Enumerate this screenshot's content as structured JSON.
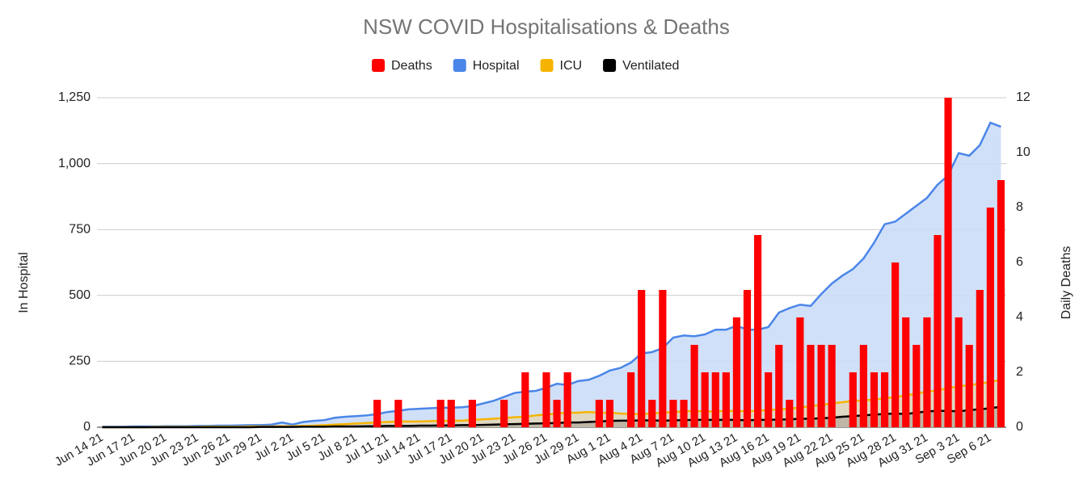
{
  "chart_data": {
    "type": "combo",
    "title": "NSW COVID Hospitalisations & Deaths",
    "y_label": "In Hospital",
    "y2_label": "Daily Deaths",
    "legend": "top",
    "grid": true,
    "categories": [
      "Jun 14 21",
      null,
      null,
      "Jun 17 21",
      null,
      null,
      "Jun 20 21",
      null,
      null,
      "Jun 23 21",
      null,
      null,
      "Jun 26 21",
      null,
      null,
      "Jun 29 21",
      null,
      null,
      "Jul 2 21",
      null,
      null,
      "Jul 5 21",
      null,
      null,
      "Jul 8 21",
      null,
      null,
      "Jul 11 21",
      null,
      null,
      "Jul 14 21",
      null,
      null,
      "Jul 17 21",
      null,
      null,
      "Jul 20 21",
      null,
      null,
      "Jul 23 21",
      null,
      null,
      "Jul 26 21",
      null,
      null,
      "Jul 29 21",
      null,
      null,
      "Aug 1 21",
      null,
      null,
      "Aug 4 21",
      null,
      null,
      "Aug 7 21",
      null,
      null,
      "Aug 10 21",
      null,
      null,
      "Aug 13 21",
      null,
      null,
      "Aug 16 21",
      null,
      null,
      "Aug 19 21",
      null,
      null,
      "Aug 22 21",
      null,
      null,
      "Aug 25 21",
      null,
      null,
      "Aug 28 21",
      null,
      null,
      "Aug 31 21",
      null,
      null,
      "Sep 3 21",
      null,
      null,
      "Sep 6 21",
      null
    ],
    "ylim": [
      0,
      1250
    ],
    "yticks": [
      0,
      250,
      500,
      750,
      {
        "value": 1000,
        "label": "1,000"
      },
      {
        "value": 1250,
        "label": "1,250"
      }
    ],
    "y2lim": [
      0,
      12
    ],
    "y2ticks": [
      0,
      2,
      4,
      6,
      8,
      10,
      12
    ],
    "series": [
      {
        "name": "Deaths",
        "type": "bar",
        "axis": "y2",
        "color": "#ff0000",
        "values": [
          0,
          0,
          0,
          0,
          0,
          0,
          0,
          0,
          0,
          0,
          0,
          0,
          0,
          0,
          0,
          0,
          0,
          0,
          0,
          0,
          0,
          0,
          0,
          0,
          0,
          0,
          1,
          0,
          1,
          0,
          0,
          0,
          1,
          1,
          0,
          1,
          0,
          0,
          1,
          0,
          2,
          0,
          2,
          1,
          2,
          0,
          0,
          1,
          1,
          0,
          2,
          5,
          1,
          5,
          1,
          1,
          3,
          2,
          2,
          2,
          4,
          5,
          7,
          2,
          3,
          1,
          4,
          3,
          3,
          3,
          0,
          2,
          3,
          2,
          2,
          6,
          4,
          3,
          4,
          7,
          12,
          4,
          3,
          5,
          8,
          9
        ]
      },
      {
        "name": "Hospital",
        "type": "area",
        "color": "#4a86e8",
        "fill": "#c9dbf8",
        "values": [
          2,
          2,
          2,
          3,
          3,
          3,
          4,
          4,
          4,
          5,
          5,
          6,
          6,
          7,
          8,
          8,
          10,
          18,
          10,
          20,
          24,
          27,
          36,
          40,
          42,
          45,
          50,
          58,
          62,
          68,
          70,
          72,
          74,
          74,
          76,
          80,
          90,
          100,
          115,
          130,
          135,
          138,
          150,
          165,
          160,
          175,
          180,
          195,
          215,
          225,
          245,
          280,
          285,
          300,
          340,
          348,
          345,
          352,
          370,
          370,
          385,
          370,
          370,
          380,
          435,
          452,
          465,
          460,
          505,
          545,
          575,
          600,
          640,
          700,
          770,
          780,
          810,
          840,
          870,
          920,
          955,
          1040,
          1030,
          1070,
          1155,
          1140
        ]
      },
      {
        "name": "ICU",
        "type": "area",
        "color": "#f6b400",
        "fill": "#e3d6b8",
        "values": [
          0,
          0,
          0,
          0,
          0,
          1,
          1,
          1,
          1,
          1,
          2,
          2,
          2,
          2,
          3,
          3,
          3,
          4,
          4,
          5,
          6,
          8,
          10,
          12,
          14,
          16,
          18,
          20,
          22,
          22,
          22,
          23,
          24,
          25,
          25,
          28,
          30,
          32,
          35,
          38,
          40,
          45,
          48,
          52,
          55,
          55,
          58,
          55,
          55,
          52,
          50,
          50,
          52,
          55,
          58,
          60,
          62,
          60,
          60,
          62,
          62,
          60,
          63,
          65,
          68,
          70,
          75,
          80,
          85,
          90,
          95,
          100,
          102,
          105,
          110,
          115,
          120,
          128,
          135,
          140,
          148,
          155,
          160,
          165,
          172,
          180
        ]
      },
      {
        "name": "Ventilated",
        "type": "area",
        "color": "#000000",
        "fill": "#b8b0a0",
        "values": [
          0,
          0,
          0,
          0,
          0,
          0,
          0,
          0,
          0,
          0,
          0,
          0,
          0,
          0,
          0,
          1,
          1,
          1,
          1,
          2,
          2,
          2,
          3,
          3,
          3,
          4,
          4,
          5,
          5,
          5,
          6,
          6,
          7,
          7,
          8,
          8,
          9,
          10,
          11,
          12,
          13,
          14,
          15,
          16,
          18,
          18,
          20,
          22,
          24,
          25,
          25,
          26,
          26,
          25,
          26,
          27,
          28,
          28,
          28,
          28,
          28,
          26,
          28,
          28,
          29,
          30,
          32,
          32,
          34,
          36,
          40,
          42,
          45,
          48,
          50,
          52,
          50,
          55,
          60,
          62,
          62,
          60,
          65,
          68,
          72,
          78
        ]
      }
    ]
  }
}
